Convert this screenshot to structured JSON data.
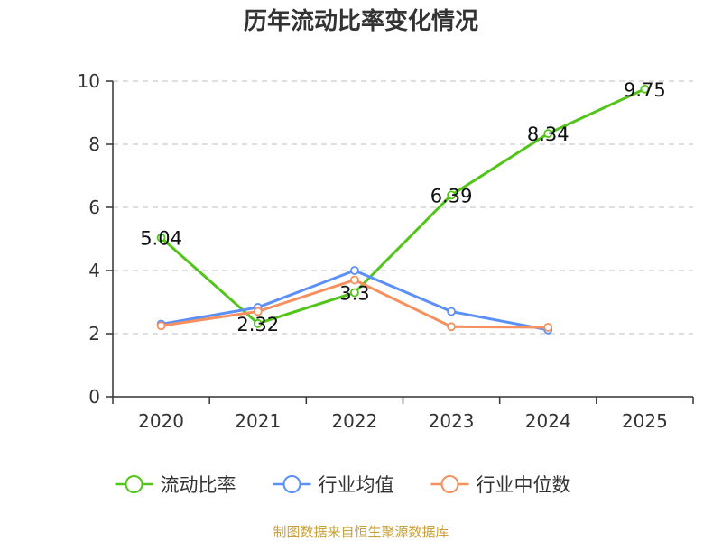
{
  "chart_data": {
    "type": "line",
    "title": "历年流动比率变化情况",
    "categories": [
      "2020",
      "2021",
      "2022",
      "2023",
      "2024",
      "2025"
    ],
    "ylim": [
      0,
      10
    ],
    "yticks": [
      0,
      2,
      4,
      6,
      8,
      10
    ],
    "grid": "horizontal-dashed",
    "legend_position": "bottom",
    "series": [
      {
        "name": "流动比率",
        "color": "#52c41a",
        "values": [
          5.04,
          2.32,
          3.3,
          6.39,
          8.34,
          9.75
        ],
        "labels": [
          "5.04",
          "2.32",
          "3.3",
          "6.39",
          "8.34",
          "9.75"
        ],
        "show_labels": true
      },
      {
        "name": "行业均值",
        "color": "#5b8ff9",
        "values": [
          2.3,
          2.83,
          4.0,
          2.7,
          2.12,
          null
        ],
        "show_labels": false
      },
      {
        "name": "行业中位数",
        "color": "#f6905f",
        "values": [
          2.25,
          2.7,
          3.7,
          2.22,
          2.2,
          null
        ],
        "show_labels": false
      }
    ]
  },
  "source": {
    "text": "制图数据来自恒生聚源数据库",
    "color": "#c8a13c"
  }
}
